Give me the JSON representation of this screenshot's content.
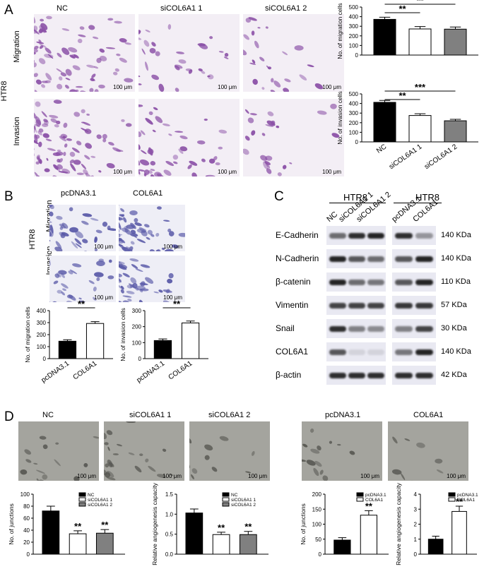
{
  "panels": {
    "A": "A",
    "B": "B",
    "C": "C",
    "D": "D"
  },
  "panelA": {
    "columns": [
      "NC",
      "siCOL6A1 1",
      "siCOL6A1 2"
    ],
    "rows": [
      "Migration",
      "Invasion"
    ],
    "cell_line": "HTR8",
    "scale": "100 μm"
  },
  "panelB": {
    "columns": [
      "pcDNA3.1",
      "COL6A1"
    ],
    "rows": [
      "Migration",
      "Invasion"
    ],
    "cell_line": "HTR8",
    "scale": "100 μm"
  },
  "panelC": {
    "groups": [
      "HTR8",
      "HTR8"
    ],
    "lanes_left": [
      "NC",
      "siCOL6A1 1",
      "siCOL6A1 2"
    ],
    "lanes_right": [
      "pcDNA3.1",
      "COL6A1"
    ],
    "proteins": [
      "E-Cadherin",
      "N-Cadherin",
      "β-catenin",
      "Vimentin",
      "Snail",
      "COL6A1",
      "β-actin"
    ],
    "sizes": [
      "140 KDa",
      "140 KDa",
      "110 KDa",
      "57 KDa",
      "30 KDa",
      "140 KDa",
      "42 KDa"
    ]
  },
  "panelD": {
    "left_columns": [
      "NC",
      "siCOL6A1 1",
      "siCOL6A1 2"
    ],
    "right_columns": [
      "pcDNA3.1",
      "COL6A1"
    ],
    "scale": "100 μm"
  },
  "colors": {
    "black": "#000000",
    "white": "#ffffff",
    "grey": "#808080",
    "stain": "#8a4fa6",
    "blue_stain": "#5a5aa8",
    "tube_bg": "#9a9a94"
  },
  "chart_data": [
    {
      "id": "A-migration",
      "type": "bar",
      "categories": [
        "NC",
        "siCOL6A1 1",
        "siCOL6A1 2"
      ],
      "values": [
        372,
        272,
        270
      ],
      "errors": [
        22,
        25,
        22
      ],
      "ylabel": "No. of migration cells",
      "ylim": [
        0,
        500
      ],
      "yticks": [
        0,
        100,
        200,
        300,
        400,
        500
      ],
      "sig": [
        "**",
        "**"
      ],
      "show_xlabels": false
    },
    {
      "id": "A-invasion",
      "type": "bar",
      "categories": [
        "NC",
        "siCOL6A1 1",
        "siCOL6A1 2"
      ],
      "values": [
        412,
        275,
        220
      ],
      "errors": [
        20,
        18,
        15
      ],
      "ylabel": "No. of invasion cells",
      "ylim": [
        0,
        500
      ],
      "yticks": [
        0,
        100,
        200,
        300,
        400,
        500
      ],
      "sig": [
        "**",
        "***"
      ],
      "show_xlabels": true
    },
    {
      "id": "B-migration",
      "type": "bar",
      "categories": [
        "pcDNA3.1",
        "COL6A1"
      ],
      "values": [
        145,
        293
      ],
      "errors": [
        12,
        15
      ],
      "ylabel": "No. of migration cells",
      "ylim": [
        0,
        400
      ],
      "yticks": [
        0,
        100,
        200,
        300,
        400
      ],
      "sig": [
        "**"
      ],
      "show_xlabels": true
    },
    {
      "id": "B-invasion",
      "type": "bar",
      "categories": [
        "pcDNA3.1",
        "COL6A1"
      ],
      "values": [
        113,
        223
      ],
      "errors": [
        10,
        12
      ],
      "ylabel": "No. of invasion cells",
      "ylim": [
        0,
        300
      ],
      "yticks": [
        0,
        100,
        200,
        300
      ],
      "sig": [
        "**"
      ],
      "show_xlabels": true
    },
    {
      "id": "D-junctions-kd",
      "type": "bar",
      "categories": [
        "NC",
        "siCOL6A1 1",
        "siCOL6A1 2"
      ],
      "values": [
        72,
        34,
        35
      ],
      "errors": [
        8,
        5,
        6
      ],
      "ylabel": "No. of junctions",
      "ylim": [
        0,
        100
      ],
      "yticks": [
        0,
        20,
        40,
        60,
        80,
        100
      ],
      "sig": [
        "**",
        "**"
      ],
      "legend": [
        "NC",
        "siCOL6A1 1",
        "siCOL6A1 2"
      ]
    },
    {
      "id": "D-angio-kd",
      "type": "bar",
      "categories": [
        "NC",
        "siCOL6A1 1",
        "siCOL6A1 2"
      ],
      "values": [
        1.03,
        0.49,
        0.49
      ],
      "errors": [
        0.1,
        0.06,
        0.08
      ],
      "ylabel": "Relative angiogenesis capacity",
      "ylim": [
        0,
        1.5
      ],
      "yticks": [
        "0.0",
        "0.5",
        "1.0",
        "1.5"
      ],
      "sig": [
        "**",
        "**"
      ],
      "legend": [
        "NC",
        "siCOL6A1 1",
        "siCOL6A1 2"
      ]
    },
    {
      "id": "D-junctions-oe",
      "type": "bar",
      "categories": [
        "pcDNA3.1",
        "COL6A1"
      ],
      "values": [
        47,
        130
      ],
      "errors": [
        8,
        15
      ],
      "ylabel": "No. of junctions",
      "ylim": [
        0,
        200
      ],
      "yticks": [
        0,
        50,
        100,
        150,
        200
      ],
      "sig": [
        "**"
      ],
      "legend": [
        "pcDNA3.1",
        "COL6A1"
      ]
    },
    {
      "id": "D-angio-oe",
      "type": "bar",
      "categories": [
        "pcDNA3.1",
        "COL6A1"
      ],
      "values": [
        1.0,
        2.85
      ],
      "errors": [
        0.2,
        0.35
      ],
      "ylabel": "Relative angiogenesis capacity",
      "ylim": [
        0,
        4
      ],
      "yticks": [
        0,
        1,
        2,
        3,
        4
      ],
      "sig": [
        "**"
      ],
      "legend": [
        "pcDNA3.1",
        "COL6A1"
      ]
    }
  ]
}
